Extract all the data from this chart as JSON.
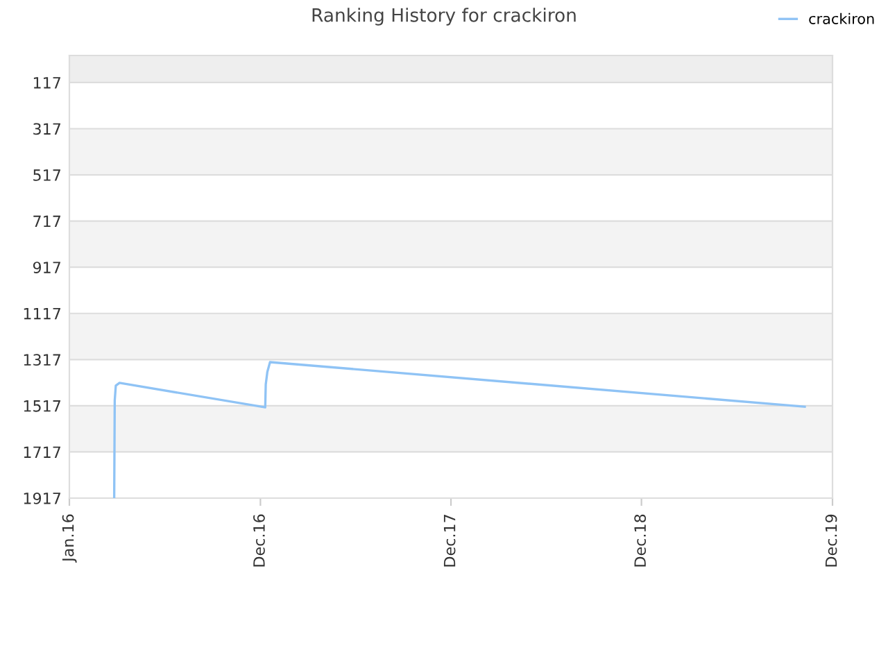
{
  "chart_data": {
    "type": "line",
    "title": "Ranking History for crackiron",
    "x": [
      "2016-03-25",
      "2016-03-26",
      "2016-03-28",
      "2016-04-04",
      "2017-01-02",
      "2017-01-03",
      "2017-01-06",
      "2017-01-11",
      "2019-10-10"
    ],
    "series": [
      {
        "name": "crackiron",
        "color": "#8fc3f5",
        "values": [
          1917,
          1494,
          1430,
          1418,
          1524,
          1424,
          1370,
          1328,
          1521
        ]
      }
    ],
    "xlim": [
      "2016-01-01",
      "2019-12-01"
    ],
    "xticks": [
      {
        "value": "2016-01-01",
        "label": "Jan.16"
      },
      {
        "value": "2016-12-24",
        "label": "Dec.16"
      },
      {
        "value": "2017-12-16",
        "label": "Dec.17"
      },
      {
        "value": "2018-12-08",
        "label": "Dec.18"
      },
      {
        "value": "2019-12-01",
        "label": "Dec.19"
      }
    ],
    "ylim": [
      1917,
      0
    ],
    "yticks": [
      117,
      317,
      517,
      717,
      917,
      1117,
      1317,
      1517,
      1717,
      1917
    ],
    "bands": [
      {
        "axis": "y",
        "from": 0,
        "to": 117,
        "color": "#eeeeee"
      },
      {
        "axis": "y",
        "from": 317,
        "to": 517,
        "color": "#f3f3f3"
      },
      {
        "axis": "y",
        "from": 717,
        "to": 917,
        "color": "#f3f3f3"
      },
      {
        "axis": "y",
        "from": 1117,
        "to": 1317,
        "color": "#f3f3f3"
      },
      {
        "axis": "y",
        "from": 1517,
        "to": 1717,
        "color": "#f3f3f3"
      }
    ],
    "grid": "y",
    "legend": "top right",
    "marker": "none",
    "line_style": "solid"
  }
}
